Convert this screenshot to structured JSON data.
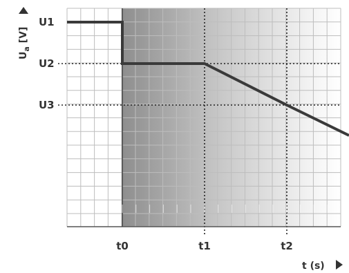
{
  "chart_data": {
    "type": "line",
    "title": "",
    "xlabel": "t (s)",
    "ylabel": "Ua [V]",
    "ylabel_parts": {
      "main": "U",
      "sub": "a",
      "unit": " [V]"
    },
    "x_ticks": [
      {
        "label": "t0",
        "value": 1
      },
      {
        "label": "t1",
        "value": 2
      },
      {
        "label": "t2",
        "value": 3
      }
    ],
    "y_ticks": [
      {
        "label": "U1",
        "value": 1
      },
      {
        "label": "U2",
        "value": 2
      },
      {
        "label": "U3",
        "value": 3
      }
    ],
    "xlim": [
      0,
      3.65
    ],
    "y_axis_direction": "U1 at top, values decrease downward",
    "y_pixel_range_note": "U1 highest, U2 middle, U3 lowest",
    "series": [
      {
        "points": [
          {
            "x": 0.0,
            "y": "U1"
          },
          {
            "x": 1.0,
            "y": "U1"
          },
          {
            "x": 1.0,
            "y": "U2"
          },
          {
            "x": 2.0,
            "y": "U2"
          },
          {
            "x": 3.0,
            "y": "U3"
          },
          {
            "x": 3.65,
            "y": "below U3"
          }
        ]
      }
    ],
    "shaded_region": {
      "from": "t0",
      "to": "end",
      "style": "grey gradient fading to white"
    },
    "grid": true,
    "reference_lines": [
      "dotted horizontal at U2",
      "dotted horizontal at U3",
      "dotted vertical at t1",
      "dotted vertical at t2"
    ]
  },
  "colors": {
    "line": "#3a3a3a",
    "grid": "#bdbdbd",
    "shade_dark": "#8c8c8c",
    "text": "#333333"
  }
}
